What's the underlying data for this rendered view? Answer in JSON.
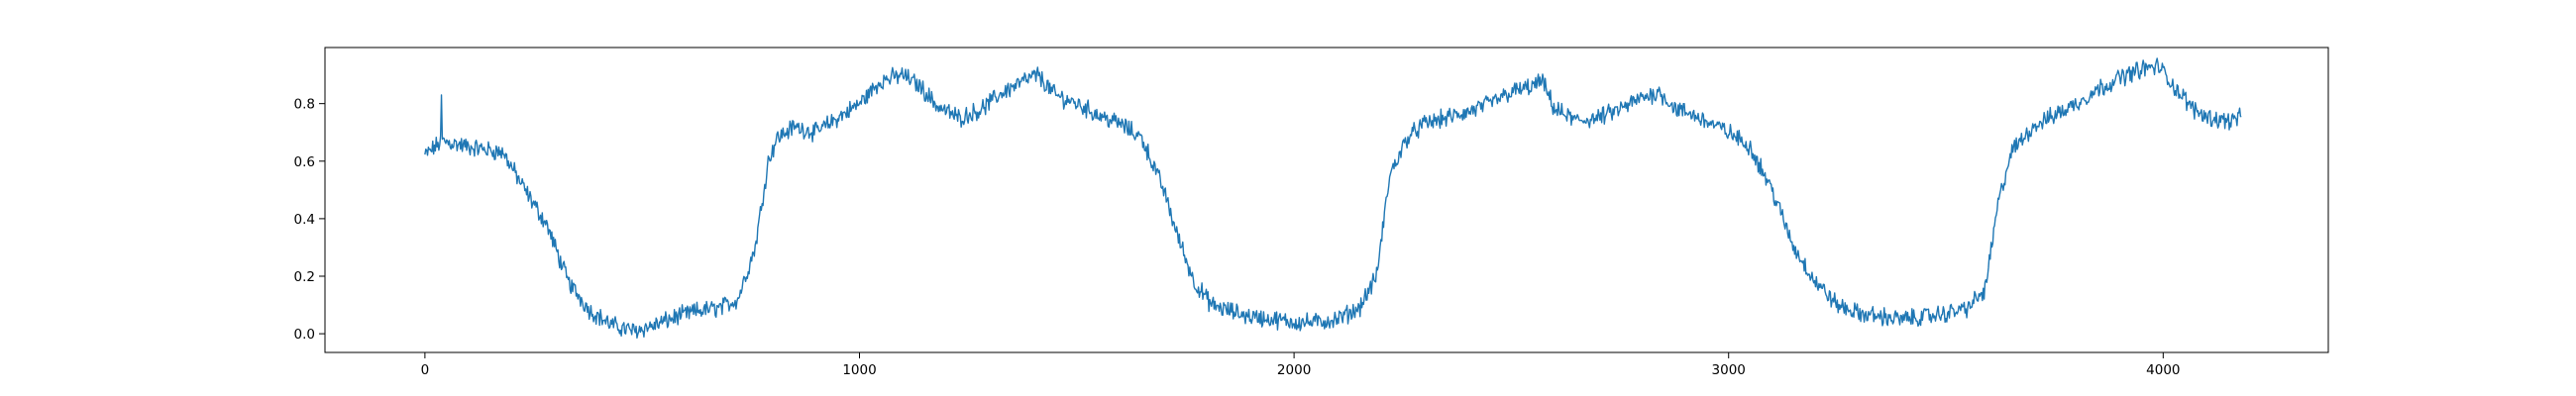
{
  "chart_data": {
    "type": "line",
    "title": "",
    "xlabel": "",
    "ylabel": "",
    "xlim": [
      -230,
      4380
    ],
    "ylim": [
      -0.065,
      0.995
    ],
    "xticks": [
      0,
      1000,
      2000,
      3000,
      4000
    ],
    "yticks": [
      0.0,
      0.2,
      0.4,
      0.6,
      0.8
    ],
    "xtick_labels": [
      "0",
      "1000",
      "2000",
      "3000",
      "4000"
    ],
    "ytick_labels": [
      "0.0",
      "0.2",
      "0.4",
      "0.6",
      "0.8"
    ],
    "grid": false,
    "legend": "none",
    "n_points": 4180,
    "series": [
      {
        "color": "#1f77b4",
        "x": [
          0,
          40,
          100,
          180,
          230,
          280,
          330,
          380,
          430,
          480,
          530,
          580,
          630,
          680,
          720,
          760,
          790,
          810,
          850,
          900,
          950,
          1000,
          1050,
          1100,
          1140,
          1180,
          1230,
          1280,
          1330,
          1380,
          1410,
          1450,
          1500,
          1550,
          1600,
          1650,
          1700,
          1730,
          1770,
          1810,
          1850,
          1900,
          1950,
          2000,
          2050,
          2100,
          2150,
          2190,
          2220,
          2260,
          2300,
          2350,
          2400,
          2450,
          2500,
          2550,
          2570,
          2600,
          2650,
          2700,
          2750,
          2800,
          2840,
          2880,
          2920,
          2960,
          3000,
          3050,
          3100,
          3150,
          3200,
          3250,
          3300,
          3350,
          3400,
          3450,
          3500,
          3550,
          3590,
          3620,
          3650,
          3700,
          3750,
          3800,
          3850,
          3900,
          3950,
          3990,
          4030,
          4070,
          4110,
          4150,
          4180
        ],
        "y": [
          0.62,
          0.67,
          0.65,
          0.63,
          0.5,
          0.38,
          0.18,
          0.08,
          0.03,
          0.01,
          0.03,
          0.06,
          0.08,
          0.09,
          0.12,
          0.3,
          0.6,
          0.68,
          0.72,
          0.7,
          0.75,
          0.8,
          0.88,
          0.9,
          0.86,
          0.79,
          0.75,
          0.78,
          0.84,
          0.88,
          0.9,
          0.83,
          0.8,
          0.76,
          0.73,
          0.68,
          0.5,
          0.35,
          0.18,
          0.1,
          0.08,
          0.06,
          0.05,
          0.04,
          0.04,
          0.05,
          0.09,
          0.2,
          0.55,
          0.68,
          0.73,
          0.75,
          0.77,
          0.8,
          0.84,
          0.86,
          0.88,
          0.78,
          0.74,
          0.75,
          0.78,
          0.82,
          0.84,
          0.78,
          0.76,
          0.73,
          0.7,
          0.65,
          0.5,
          0.3,
          0.18,
          0.1,
          0.07,
          0.06,
          0.05,
          0.06,
          0.07,
          0.09,
          0.15,
          0.45,
          0.63,
          0.72,
          0.76,
          0.8,
          0.85,
          0.89,
          0.92,
          0.93,
          0.85,
          0.78,
          0.75,
          0.74,
          0.75
        ],
        "spike": {
          "x": 38,
          "y": 0.83
        },
        "noise_amplitude": 0.025
      }
    ]
  }
}
